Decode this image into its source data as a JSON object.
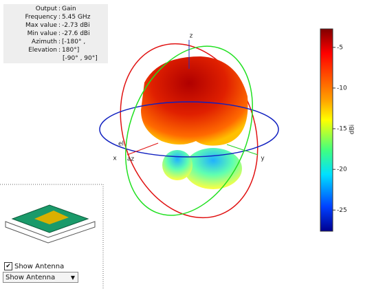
{
  "info": [
    {
      "label": "Output",
      "value": "Gain"
    },
    {
      "label": "Frequency",
      "value": "5.45 GHz"
    },
    {
      "label": "Max value",
      "value": "-2.73 dBi"
    },
    {
      "label": "Min value",
      "value": "-27.6 dBi"
    },
    {
      "label": "Azimuth",
      "value": "[-180° ,"
    },
    {
      "label": "Elevation",
      "value": "180°]"
    }
  ],
  "info_extra": "[-90° , 90°]",
  "axes": {
    "x": "x",
    "y": "y",
    "z": "z",
    "el": "el",
    "az": "az"
  },
  "colorbar": {
    "label": "dBi",
    "range": [
      -27.6,
      -2.73
    ],
    "ticks": [
      -5,
      -10,
      -15,
      -20,
      -25
    ]
  },
  "checkbox": {
    "label": "Show Antenna",
    "checked": true
  },
  "dropdown": {
    "selected": "Show Antenna"
  }
}
